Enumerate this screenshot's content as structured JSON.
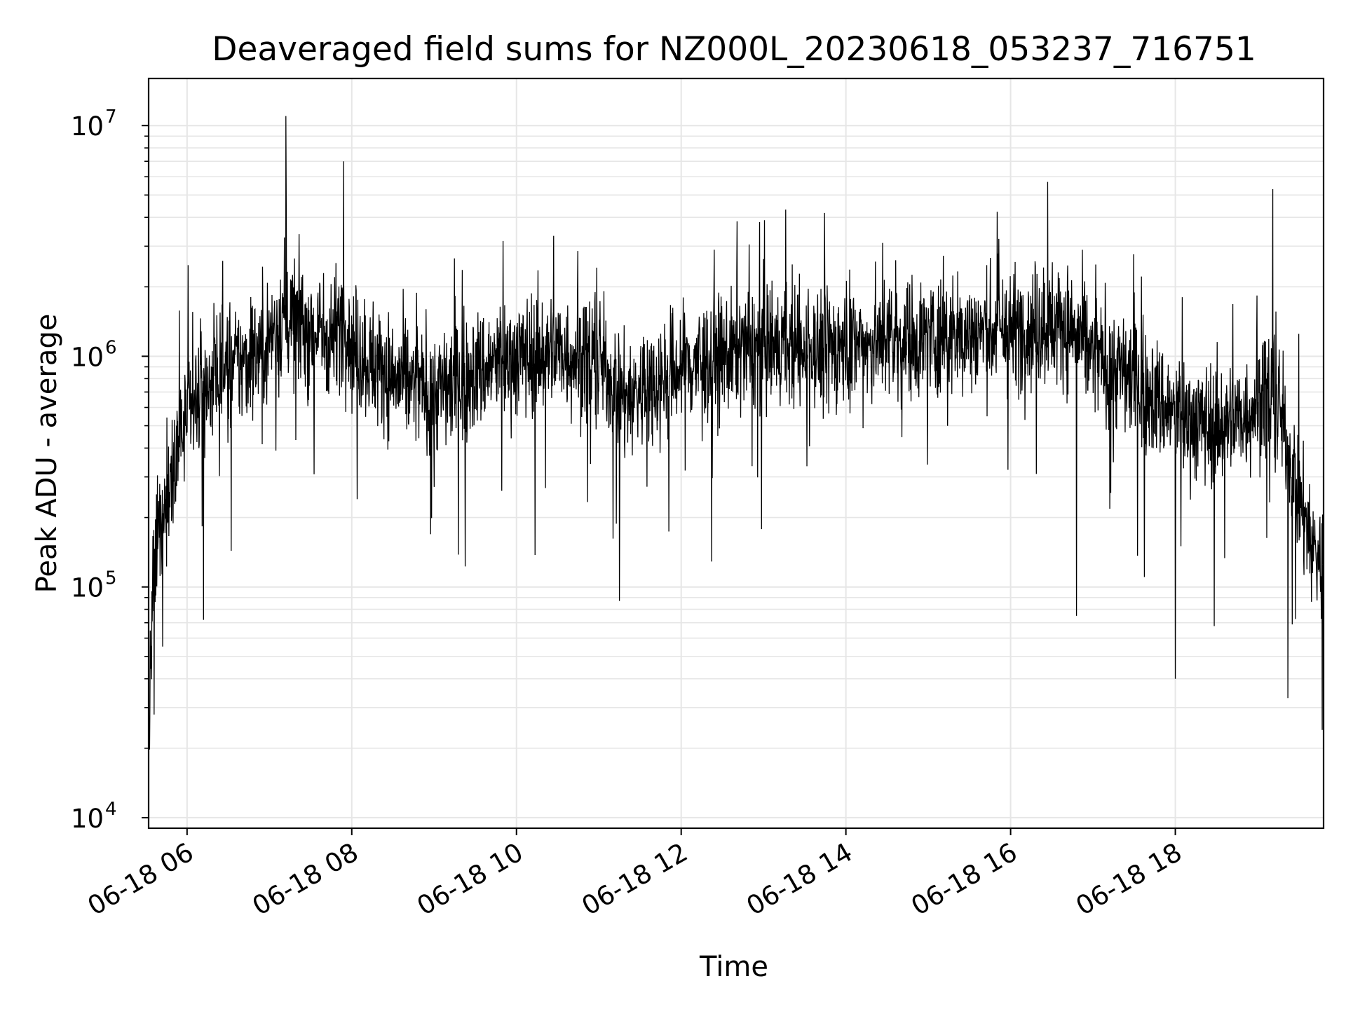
{
  "chart_data": {
    "type": "line",
    "title": "Deaveraged field sums for NZ000L_20230618_053237_716751",
    "xlabel": "Time",
    "ylabel": "Peak ADU - average",
    "x_scale": "time",
    "y_scale": "log",
    "xlim": [
      "2023-06-18 05:32",
      "2023-06-18 19:48"
    ],
    "ylim": [
      9000,
      16000000
    ],
    "grid": true,
    "line_color": "#000000",
    "grid_color": "#e6e6e6",
    "x_ticks": [
      {
        "value": "2023-06-18 06:00",
        "label": "06-18 06"
      },
      {
        "value": "2023-06-18 08:00",
        "label": "06-18 08"
      },
      {
        "value": "2023-06-18 10:00",
        "label": "06-18 10"
      },
      {
        "value": "2023-06-18 12:00",
        "label": "06-18 12"
      },
      {
        "value": "2023-06-18 14:00",
        "label": "06-18 14"
      },
      {
        "value": "2023-06-18 16:00",
        "label": "06-18 16"
      },
      {
        "value": "2023-06-18 18:00",
        "label": "06-18 18"
      }
    ],
    "y_ticks": [
      {
        "value": 10000,
        "base": "10",
        "exp": "4"
      },
      {
        "value": 100000,
        "base": "10",
        "exp": "5"
      },
      {
        "value": 1000000,
        "base": "10",
        "exp": "6"
      },
      {
        "value": 10000000,
        "base": "10",
        "exp": "7"
      }
    ],
    "series": [
      {
        "x": [
          "2023-06-18 05:32",
          "2023-06-18 05:35",
          "2023-06-18 05:38",
          "2023-06-18 05:40",
          "2023-06-18 05:42",
          "2023-06-18 05:45",
          "2023-06-18 05:50",
          "2023-06-18 06:00",
          "2023-06-18 06:15",
          "2023-06-18 06:30",
          "2023-06-18 06:45",
          "2023-06-18 07:00",
          "2023-06-18 07:12",
          "2023-06-18 07:30",
          "2023-06-18 07:45",
          "2023-06-18 07:55",
          "2023-06-18 08:00",
          "2023-06-18 08:15",
          "2023-06-18 08:30",
          "2023-06-18 08:45",
          "2023-06-18 09:00",
          "2023-06-18 09:30",
          "2023-06-18 10:00",
          "2023-06-18 10:30",
          "2023-06-18 11:00",
          "2023-06-18 11:20",
          "2023-06-18 11:45",
          "2023-06-18 12:00",
          "2023-06-18 12:30",
          "2023-06-18 13:00",
          "2023-06-18 13:30",
          "2023-06-18 14:00",
          "2023-06-18 14:30",
          "2023-06-18 15:00",
          "2023-06-18 15:30",
          "2023-06-18 16:00",
          "2023-06-18 16:30",
          "2023-06-18 16:45",
          "2023-06-18 17:00",
          "2023-06-18 17:30",
          "2023-06-18 18:00",
          "2023-06-18 18:30",
          "2023-06-18 18:50",
          "2023-06-18 19:05",
          "2023-06-18 19:15",
          "2023-06-18 19:30",
          "2023-06-18 19:40",
          "2023-06-18 19:48"
        ],
        "y": [
          20000,
          90000,
          150000,
          180000,
          200000,
          220000,
          380000,
          550000,
          750000,
          900000,
          950000,
          1200000,
          1500000,
          1300000,
          1200000,
          1500000,
          1100000,
          950000,
          800000,
          750000,
          700000,
          850000,
          1000000,
          1050000,
          950000,
          650000,
          800000,
          900000,
          1000000,
          1100000,
          1050000,
          1100000,
          1150000,
          1200000,
          1250000,
          1300000,
          1400000,
          1300000,
          1000000,
          800000,
          550000,
          500000,
          550000,
          700000,
          600000,
          250000,
          150000,
          120000
        ],
        "spike_peaks": [
          {
            "x": "2023-06-18 07:12",
            "y": 11000000
          },
          {
            "x": "2023-06-18 07:54",
            "y": 7000000
          },
          {
            "x": "2023-06-18 16:27",
            "y": 5700000
          },
          {
            "x": "2023-06-18 19:11",
            "y": 5300000
          }
        ],
        "spike_troughs": [
          {
            "x": "2023-06-18 05:36",
            "y": 28000
          },
          {
            "x": "2023-06-18 06:12",
            "y": 72000
          },
          {
            "x": "2023-06-18 11:15",
            "y": 87000
          },
          {
            "x": "2023-06-18 16:48",
            "y": 75000
          },
          {
            "x": "2023-06-18 18:00",
            "y": 40000
          },
          {
            "x": "2023-06-18 19:22",
            "y": 33000
          },
          {
            "x": "2023-06-18 19:47",
            "y": 24000
          }
        ]
      }
    ]
  }
}
